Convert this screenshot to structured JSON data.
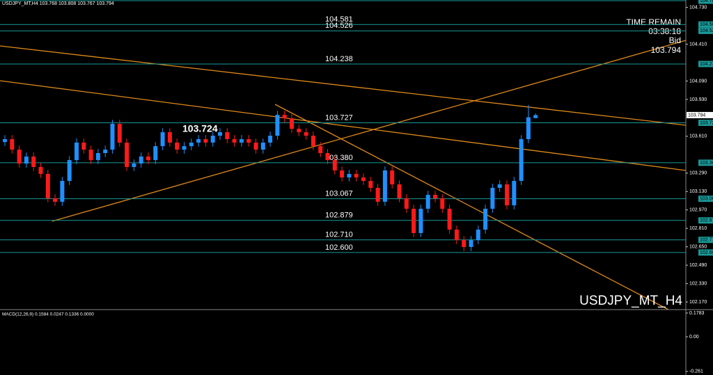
{
  "chart_data": {
    "type": "candlestick",
    "title": "USDJPY_MT,H4",
    "watermark": "USDJPY_MT_H4",
    "up_color": "#1e90ff",
    "down_color": "#ff1a1a",
    "level_color": "#1a9a9a",
    "open": [
      103.56,
      103.585,
      103.494,
      103.373,
      103.434,
      103.343,
      103.283,
      103.071,
      103.041,
      103.222,
      103.403,
      103.555,
      103.494,
      103.403,
      103.464,
      103.494,
      103.718,
      103.555,
      103.343,
      103.373,
      103.434,
      103.403,
      103.524,
      103.645,
      103.555,
      103.494,
      103.524,
      103.555,
      103.585,
      103.555,
      103.615,
      103.645,
      103.585,
      103.555,
      103.585,
      103.555,
      103.494,
      103.555,
      103.615,
      103.796,
      103.766,
      103.675,
      103.645,
      103.615,
      103.524,
      103.464,
      103.403,
      103.313,
      103.252,
      103.283,
      103.252,
      103.222,
      103.162,
      103.041,
      103.313,
      103.192,
      103.071,
      102.98,
      102.769,
      102.98,
      103.101,
      103.071,
      102.98,
      102.799,
      102.708,
      102.648,
      102.708,
      102.799,
      102.98,
      103.162,
      103.192,
      103.01,
      103.222,
      103.585,
      103.768
    ],
    "high": [
      103.62,
      103.62,
      103.529,
      103.469,
      103.469,
      103.378,
      103.318,
      103.106,
      103.257,
      103.438,
      103.59,
      103.59,
      103.529,
      103.499,
      103.529,
      103.753,
      103.753,
      103.59,
      103.408,
      103.469,
      103.469,
      103.559,
      103.68,
      103.68,
      103.59,
      103.559,
      103.59,
      103.62,
      103.62,
      103.65,
      103.68,
      103.68,
      103.62,
      103.62,
      103.62,
      103.59,
      103.59,
      103.65,
      103.831,
      103.831,
      103.801,
      103.71,
      103.68,
      103.65,
      103.559,
      103.499,
      103.438,
      103.348,
      103.318,
      103.318,
      103.287,
      103.257,
      103.197,
      103.348,
      103.348,
      103.227,
      103.106,
      103.015,
      103.015,
      103.136,
      103.136,
      103.106,
      103.015,
      102.834,
      102.743,
      102.743,
      102.834,
      103.015,
      103.197,
      103.227,
      103.227,
      103.257,
      103.62,
      103.882,
      103.808
    ],
    "low": [
      103.525,
      103.459,
      103.338,
      103.338,
      103.308,
      103.248,
      103.036,
      103.006,
      103.006,
      103.187,
      103.368,
      103.459,
      103.368,
      103.368,
      103.429,
      103.459,
      103.52,
      103.308,
      103.308,
      103.338,
      103.368,
      103.368,
      103.489,
      103.52,
      103.459,
      103.459,
      103.489,
      103.52,
      103.52,
      103.52,
      103.58,
      103.55,
      103.52,
      103.52,
      103.52,
      103.459,
      103.459,
      103.52,
      103.58,
      103.731,
      103.64,
      103.61,
      103.58,
      103.489,
      103.429,
      103.368,
      103.278,
      103.217,
      103.217,
      103.217,
      103.187,
      103.127,
      103.006,
      103.006,
      103.157,
      103.036,
      102.945,
      102.734,
      102.734,
      102.945,
      103.036,
      102.945,
      102.764,
      102.673,
      102.613,
      102.613,
      102.673,
      102.764,
      102.945,
      103.127,
      102.975,
      102.975,
      103.187,
      103.55,
      103.767
    ],
    "close": [
      103.585,
      103.494,
      103.373,
      103.434,
      103.343,
      103.283,
      103.071,
      103.041,
      103.222,
      103.403,
      103.555,
      103.494,
      103.403,
      103.464,
      103.494,
      103.718,
      103.555,
      103.343,
      103.373,
      103.434,
      103.403,
      103.524,
      103.645,
      103.555,
      103.494,
      103.524,
      103.555,
      103.585,
      103.555,
      103.615,
      103.645,
      103.585,
      103.555,
      103.585,
      103.555,
      103.494,
      103.555,
      103.615,
      103.796,
      103.766,
      103.675,
      103.645,
      103.615,
      103.524,
      103.464,
      103.403,
      103.313,
      103.252,
      103.283,
      103.252,
      103.222,
      103.162,
      103.041,
      103.313,
      103.192,
      103.071,
      102.98,
      102.769,
      102.98,
      103.101,
      103.071,
      102.98,
      102.799,
      102.708,
      102.648,
      102.708,
      102.799,
      102.98,
      103.162,
      103.192,
      103.01,
      103.222,
      103.585,
      103.775,
      103.794
    ],
    "ylim": [
      102.116,
      104.794
    ],
    "yticks": [
      {
        "value": 104.73,
        "label": "104.730"
      },
      {
        "value": 104.41,
        "label": "104.410"
      },
      {
        "value": 104.09,
        "label": "104.090"
      },
      {
        "value": 103.93,
        "label": "103.930"
      },
      {
        "value": 103.61,
        "label": "103.610"
      },
      {
        "value": 103.29,
        "label": "103.290"
      },
      {
        "value": 103.13,
        "label": "103.130"
      },
      {
        "value": 102.97,
        "label": "102.970"
      },
      {
        "value": 102.81,
        "label": "102.810"
      },
      {
        "value": 102.65,
        "label": "102.650"
      },
      {
        "value": 102.49,
        "label": "102.490"
      },
      {
        "value": 102.33,
        "label": "102.330"
      },
      {
        "value": 102.17,
        "label": "102.170"
      }
    ],
    "levels": [
      104.788,
      104.581,
      104.526,
      104.238,
      103.727,
      {
        "value": 103.38,
        "label": "103.380"
      },
      103.067,
      102.879,
      {
        "value": 102.71,
        "label": "102.710"
      },
      {
        "value": 102.6,
        "label": "102.600"
      }
    ],
    "annotation": 103.724,
    "time_remain": {
      "label": "TIME REMAIN",
      "value": "03:38:18"
    },
    "bid_label": "Bid",
    "macd": {
      "label": "MACD(12,26,9) 0.1584 0.0247 0.1336 0.0000",
      "ylim": [
        -0.288,
        0.199
      ],
      "yticks": [
        0.1783,
        {
          "value": 0,
          "label": "0.00"
        },
        -0.261
      ]
    }
  }
}
